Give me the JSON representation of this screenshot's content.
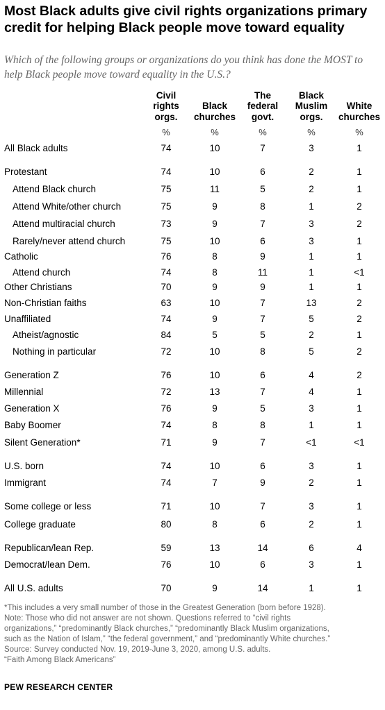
{
  "title": "Most Black adults give civil rights organizations primary credit for helping Black people move toward equality",
  "subtitle": "Which of the following groups or organizations do you think has done the MOST to help Black people move toward equality in the U.S.?",
  "chart_data": {
    "type": "table",
    "columns": [
      {
        "label": "Civil rights orgs.",
        "lines": [
          "Civil",
          "rights",
          "orgs."
        ]
      },
      {
        "label": "Black churches",
        "lines": [
          "Black",
          "churches"
        ]
      },
      {
        "label": "The federal govt.",
        "lines": [
          "The",
          "federal",
          "govt."
        ]
      },
      {
        "label": "Black Muslim orgs.",
        "lines": [
          "Black",
          "Muslim",
          "orgs."
        ]
      },
      {
        "label": "White churches",
        "lines": [
          "White",
          "churches"
        ]
      }
    ],
    "unit": "%",
    "rows": [
      {
        "label": "All Black adults",
        "indent": false,
        "values": [
          "74",
          "10",
          "7",
          "3",
          "1"
        ]
      },
      {
        "label": "Protestant",
        "indent": false,
        "values": [
          "74",
          "10",
          "6",
          "2",
          "1"
        ]
      },
      {
        "label": "Attend Black church",
        "indent": true,
        "values": [
          "75",
          "11",
          "5",
          "2",
          "1"
        ]
      },
      {
        "label": "Attend White/other church",
        "indent": true,
        "values": [
          "75",
          "9",
          "8",
          "1",
          "2"
        ]
      },
      {
        "label": "Attend multiracial church",
        "indent": true,
        "values": [
          "73",
          "9",
          "7",
          "3",
          "2"
        ]
      },
      {
        "label": "Rarely/never attend church",
        "indent": true,
        "values": [
          "75",
          "10",
          "6",
          "3",
          "1"
        ]
      },
      {
        "label": "Catholic",
        "indent": false,
        "values": [
          "76",
          "8",
          "9",
          "1",
          "1"
        ]
      },
      {
        "label": "Attend church",
        "indent": true,
        "values": [
          "74",
          "8",
          "11",
          "1",
          "<1"
        ]
      },
      {
        "label": "Other Christians",
        "indent": false,
        "values": [
          "70",
          "9",
          "9",
          "1",
          "1"
        ]
      },
      {
        "label": "Non-Christian faiths",
        "indent": false,
        "values": [
          "63",
          "10",
          "7",
          "13",
          "2"
        ]
      },
      {
        "label": "Unaffiliated",
        "indent": false,
        "values": [
          "74",
          "9",
          "7",
          "5",
          "2"
        ]
      },
      {
        "label": "Atheist/agnostic",
        "indent": true,
        "values": [
          "84",
          "5",
          "5",
          "2",
          "1"
        ]
      },
      {
        "label": "Nothing in particular",
        "indent": true,
        "values": [
          "72",
          "10",
          "8",
          "5",
          "2"
        ]
      },
      {
        "label": "Generation Z",
        "indent": false,
        "values": [
          "76",
          "10",
          "6",
          "4",
          "2"
        ]
      },
      {
        "label": "Millennial",
        "indent": false,
        "values": [
          "72",
          "13",
          "7",
          "4",
          "1"
        ]
      },
      {
        "label": "Generation X",
        "indent": false,
        "values": [
          "76",
          "9",
          "5",
          "3",
          "1"
        ]
      },
      {
        "label": "Baby Boomer",
        "indent": false,
        "values": [
          "74",
          "8",
          "8",
          "1",
          "1"
        ]
      },
      {
        "label": "Silent Generation*",
        "indent": false,
        "values": [
          "71",
          "9",
          "7",
          "<1",
          "<1"
        ]
      },
      {
        "label": "U.S. born",
        "indent": false,
        "values": [
          "74",
          "10",
          "6",
          "3",
          "1"
        ]
      },
      {
        "label": "Immigrant",
        "indent": false,
        "values": [
          "74",
          "7",
          "9",
          "2",
          "1"
        ]
      },
      {
        "label": "Some college or less",
        "indent": false,
        "values": [
          "71",
          "10",
          "7",
          "3",
          "1"
        ]
      },
      {
        "label": "College graduate",
        "indent": false,
        "values": [
          "80",
          "8",
          "6",
          "2",
          "1"
        ]
      },
      {
        "label": "Republican/lean Rep.",
        "indent": false,
        "values": [
          "59",
          "13",
          "14",
          "6",
          "4"
        ]
      },
      {
        "label": "Democrat/lean Dem.",
        "indent": false,
        "values": [
          "76",
          "10",
          "6",
          "3",
          "1"
        ]
      },
      {
        "label": "All U.S. adults",
        "indent": false,
        "values": [
          "70",
          "9",
          "14",
          "1",
          "1"
        ]
      }
    ]
  },
  "footnotes": [
    "*This includes a very small number of those in the Greatest Generation (born before 1928).",
    "Note: Those who did not answer are not shown. Questions referred to “civil rights",
    "organizations,” “predominantly Black churches,” “predominantly Black Muslim organizations,",
    "such as the Nation of Islam,” “the federal government,” and “predominantly White churches.”",
    "Source: Survey conducted Nov. 19, 2019-June 3, 2020, among U.S. adults.",
    "“Faith Among Black Americans”"
  ],
  "brand": "PEW RESEARCH CENTER"
}
